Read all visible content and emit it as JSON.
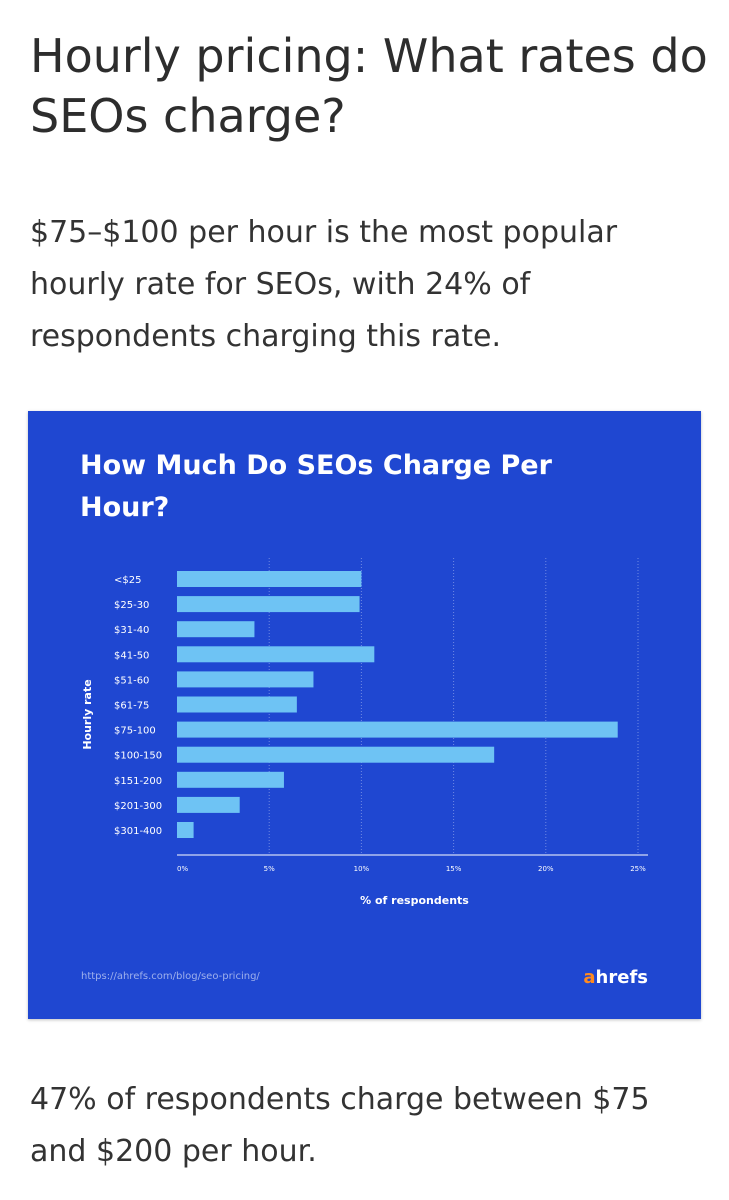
{
  "article": {
    "heading": "Hourly pricing: What rates do SEOs charge?",
    "intro": "$75–$100 per hour is the most popular hourly rate for SEOs, with 24% of respondents charging this rate.",
    "closing": "47% of respondents charge between $75 and $200 per hour."
  },
  "card": {
    "source_url": "https://ahrefs.com/blog/seo-pricing/",
    "brand_prefix": "a",
    "brand_rest": "hrefs",
    "colors": {
      "background": "#1f47d1",
      "bar": "#6ec3f4",
      "brand_accent": "#ff8a1f"
    }
  },
  "chart_data": {
    "type": "bar",
    "orientation": "horizontal",
    "title": "How Much Do SEOs Charge Per Hour?",
    "xlabel": "% of respondents",
    "ylabel": "Hourly rate",
    "categories": [
      "<$25",
      "$25-30",
      "$31-40",
      "$41-50",
      "$51-60",
      "$61-75",
      "$75-100",
      "$100-150",
      "$151-200",
      "$201-300",
      "$301-400"
    ],
    "values": [
      10,
      9.9,
      4.2,
      10.7,
      7.4,
      6.5,
      23.9,
      17.2,
      5.8,
      3.4,
      0.9
    ],
    "xlim": [
      0,
      25
    ],
    "xticks": [
      0,
      5,
      10,
      15,
      20,
      25
    ],
    "xtick_labels": [
      "0%",
      "5%",
      "10%",
      "15%",
      "20%",
      "25%"
    ],
    "grid": "vertical dotted"
  }
}
